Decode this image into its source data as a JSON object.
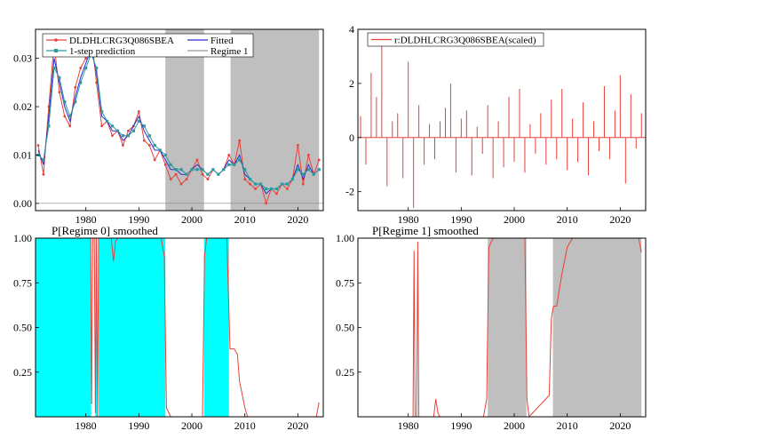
{
  "chart_data": [
    {
      "type": "line",
      "title": "",
      "xlabel": "",
      "ylabel": "",
      "xlim": [
        1970.5,
        2024.8
      ],
      "ylim": [
        -0.0015,
        0.036
      ],
      "x_ticks": [
        1980,
        1990,
        2000,
        2010,
        2020
      ],
      "y_ticks": [
        0.0,
        0.01,
        0.02,
        0.03
      ],
      "y_tick_labels": [
        "0.00",
        "0.01",
        "0.02",
        "0.03"
      ],
      "grid": false,
      "legend_position": "top",
      "shaded_regions": [
        [
          1995.0,
          2002.3
        ],
        [
          2007.3,
          2024.0
        ]
      ],
      "legend": [
        "DLDHLCRG3Q086SBEA",
        "Fitted",
        "1-step prediction",
        "Regime 1"
      ],
      "series": [
        {
          "name": "DLDHLCRG3Q086SBEA",
          "color": "#e8413b",
          "style": "line",
          "x": [
            1971,
            1972,
            1973,
            1974,
            1975,
            1976,
            1977,
            1978,
            1979,
            1980,
            1981,
            1982,
            1983,
            1984,
            1985,
            1986,
            1987,
            1988,
            1989,
            1990,
            1991,
            1992,
            1993,
            1994,
            1995,
            1996,
            1997,
            1998,
            1999,
            2000,
            2001,
            2002,
            2003,
            2004,
            2005,
            2006,
            2007,
            2008,
            2009,
            2010,
            2011,
            2012,
            2013,
            2014,
            2015,
            2016,
            2017,
            2018,
            2019,
            2020,
            2021,
            2022,
            2023,
            2024
          ],
          "y": [
            0.012,
            0.006,
            0.02,
            0.033,
            0.023,
            0.018,
            0.016,
            0.024,
            0.028,
            0.03,
            0.035,
            0.025,
            0.016,
            0.017,
            0.014,
            0.015,
            0.012,
            0.015,
            0.016,
            0.019,
            0.013,
            0.012,
            0.009,
            0.011,
            0.008,
            0.005,
            0.006,
            0.004,
            0.005,
            0.007,
            0.009,
            0.006,
            0.005,
            0.007,
            0.006,
            0.007,
            0.01,
            0.008,
            0.013,
            0.005,
            0.004,
            0.003,
            0.004,
            0.0,
            0.003,
            0.002,
            0.004,
            0.003,
            0.005,
            0.012,
            0.004,
            0.01,
            0.006,
            0.009
          ]
        },
        {
          "name": "Fitted",
          "color": "#2b2bcf",
          "style": "line",
          "x": [
            1971,
            1972,
            1973,
            1974,
            1975,
            1976,
            1977,
            1978,
            1979,
            1980,
            1981,
            1982,
            1983,
            1984,
            1985,
            1986,
            1987,
            1988,
            1989,
            1990,
            1991,
            1992,
            1993,
            1994,
            1995,
            1996,
            1997,
            1998,
            1999,
            2000,
            2001,
            2002,
            2003,
            2004,
            2005,
            2006,
            2007,
            2008,
            2009,
            2010,
            2011,
            2012,
            2013,
            2014,
            2015,
            2016,
            2017,
            2018,
            2019,
            2020,
            2021,
            2022,
            2023,
            2024
          ],
          "y": [
            0.011,
            0.008,
            0.018,
            0.03,
            0.025,
            0.02,
            0.017,
            0.022,
            0.026,
            0.029,
            0.032,
            0.027,
            0.018,
            0.017,
            0.015,
            0.015,
            0.013,
            0.014,
            0.016,
            0.018,
            0.015,
            0.013,
            0.011,
            0.011,
            0.009,
            0.007,
            0.007,
            0.006,
            0.006,
            0.007,
            0.008,
            0.007,
            0.006,
            0.007,
            0.006,
            0.007,
            0.009,
            0.008,
            0.01,
            0.006,
            0.005,
            0.004,
            0.004,
            0.002,
            0.003,
            0.003,
            0.004,
            0.004,
            0.005,
            0.008,
            0.005,
            0.008,
            0.006,
            0.007
          ]
        },
        {
          "name": "1-step prediction",
          "color": "#2a9a9a",
          "style": "line-markers",
          "x": [
            1971,
            1972,
            1973,
            1974,
            1975,
            1976,
            1977,
            1978,
            1979,
            1980,
            1981,
            1982,
            1983,
            1984,
            1985,
            1986,
            1987,
            1988,
            1989,
            1990,
            1991,
            1992,
            1993,
            1994,
            1995,
            1996,
            1997,
            1998,
            1999,
            2000,
            2001,
            2002,
            2003,
            2004,
            2005,
            2006,
            2007,
            2008,
            2009,
            2010,
            2011,
            2012,
            2013,
            2014,
            2015,
            2016,
            2017,
            2018,
            2019,
            2020,
            2021,
            2022,
            2023,
            2024
          ],
          "y": [
            0.01,
            0.009,
            0.016,
            0.028,
            0.026,
            0.021,
            0.018,
            0.021,
            0.025,
            0.028,
            0.031,
            0.028,
            0.019,
            0.017,
            0.016,
            0.015,
            0.014,
            0.014,
            0.015,
            0.017,
            0.016,
            0.014,
            0.012,
            0.011,
            0.01,
            0.008,
            0.007,
            0.007,
            0.006,
            0.007,
            0.007,
            0.007,
            0.006,
            0.007,
            0.006,
            0.007,
            0.008,
            0.008,
            0.009,
            0.007,
            0.005,
            0.004,
            0.004,
            0.003,
            0.003,
            0.003,
            0.004,
            0.004,
            0.005,
            0.007,
            0.006,
            0.007,
            0.006,
            0.007
          ]
        },
        {
          "name": "Regime 1",
          "color": "#bfbfbf",
          "style": "shading"
        }
      ]
    },
    {
      "type": "bar",
      "title": "",
      "xlabel": "",
      "ylabel": "",
      "xlim": [
        1970.5,
        2024.8
      ],
      "ylim": [
        -2.7,
        4.0
      ],
      "x_ticks": [
        1980,
        1990,
        2000,
        2010,
        2020
      ],
      "y_ticks": [
        -2,
        0,
        2,
        4
      ],
      "y_tick_labels": [
        "-2",
        "0",
        "2",
        "4"
      ],
      "grid": false,
      "legend_position": "top-left",
      "legend": [
        "r:DLDHLCRG3Q086SBEA(scaled)"
      ],
      "series": [
        {
          "name": "r:DLDHLCRG3Q086SBEA(scaled)",
          "color": "#e8413b",
          "x": [
            1971,
            1972,
            1973,
            1974,
            1975,
            1976,
            1977,
            1978,
            1979,
            1980,
            1981,
            1982,
            1983,
            1984,
            1985,
            1986,
            1987,
            1988,
            1989,
            1990,
            1991,
            1992,
            1993,
            1994,
            1995,
            1996,
            1997,
            1998,
            1999,
            2000,
            2001,
            2002,
            2003,
            2004,
            2005,
            2006,
            2007,
            2008,
            2009,
            2010,
            2011,
            2012,
            2013,
            2014,
            2015,
            2016,
            2017,
            2018,
            2019,
            2020,
            2021,
            2022,
            2023,
            2024
          ],
          "y": [
            0.8,
            -1.0,
            2.4,
            1.5,
            3.8,
            -1.8,
            0.6,
            0.9,
            -1.5,
            2.8,
            -2.6,
            1.2,
            -1.0,
            0.5,
            -0.8,
            0.6,
            1.1,
            2.0,
            -1.3,
            0.7,
            1.0,
            -1.4,
            0.4,
            -0.6,
            1.2,
            -1.5,
            0.6,
            -1.1,
            1.5,
            -0.9,
            1.8,
            -1.3,
            0.5,
            -0.6,
            0.9,
            -1.0,
            1.4,
            -0.8,
            1.8,
            -1.2,
            0.7,
            -0.9,
            1.3,
            -1.4,
            0.6,
            -0.5,
            1.9,
            -0.8,
            1.0,
            2.3,
            -1.7,
            1.6,
            -0.4,
            0.9
          ]
        }
      ]
    },
    {
      "type": "area",
      "title": "P[Regime 0] smoothed",
      "xlabel": "",
      "ylabel": "",
      "xlim": [
        1970.5,
        2024.8
      ],
      "ylim": [
        0,
        1.0
      ],
      "x_ticks": [
        1980,
        1990,
        2000,
        2010,
        2020
      ],
      "y_ticks": [
        0.25,
        0.5,
        0.75,
        1.0
      ],
      "y_tick_labels": [
        "0.25",
        "0.50",
        "0.75",
        "1.00"
      ],
      "grid": false,
      "shaded_regions": [
        [
          1970.5,
          1981.0
        ],
        [
          1981.8,
          1982.1
        ],
        [
          1982.4,
          1995.0
        ],
        [
          2002.3,
          2007.0
        ]
      ],
      "shade_color": "#00ffff",
      "series": [
        {
          "name": "P[Regime 0] smoothed",
          "color": "#e8413b",
          "x": [
            1970.5,
            1980.9,
            1981.1,
            1981.3,
            1981.6,
            1981.8,
            1982.0,
            1982.2,
            1982.4,
            1984.8,
            1985.2,
            1985.6,
            1986.0,
            1994.2,
            1994.8,
            1995.2,
            1996.0,
            2002.0,
            2002.4,
            2002.8,
            2006.6,
            2007.2,
            2008.0,
            2008.6,
            2009.0,
            2010.0,
            2010.5,
            2015.0,
            2020.0,
            2023.5,
            2024.0
          ],
          "y": [
            1.0,
            1.0,
            0.07,
            1.0,
            1.0,
            0.02,
            1.0,
            0.0,
            1.0,
            1.0,
            0.87,
            0.98,
            1.0,
            1.0,
            0.9,
            0.05,
            0.0,
            0.0,
            0.9,
            1.0,
            1.0,
            0.38,
            0.38,
            0.35,
            0.2,
            0.05,
            0.0,
            0.0,
            0.0,
            0.0,
            0.08
          ]
        }
      ]
    },
    {
      "type": "area",
      "title": "P[Regime 1] smoothed",
      "xlabel": "",
      "ylabel": "",
      "xlim": [
        1970.5,
        2024.8
      ],
      "ylim": [
        0,
        1.0
      ],
      "x_ticks": [
        1980,
        1990,
        2000,
        2010,
        2020
      ],
      "y_ticks": [
        0.25,
        0.5,
        0.75,
        1.0
      ],
      "y_tick_labels": [
        "0.25",
        "0.50",
        "0.75",
        "1.00"
      ],
      "grid": false,
      "shaded_regions": [
        [
          1995.0,
          2002.3
        ],
        [
          2007.3,
          2024.0
        ]
      ],
      "shade_color": "#bfbfbf",
      "series": [
        {
          "name": "P[Regime 1] smoothed",
          "color": "#e8413b",
          "x": [
            1970.5,
            1980.9,
            1981.1,
            1981.3,
            1981.6,
            1981.8,
            1982.0,
            1982.2,
            1982.4,
            1984.8,
            1985.2,
            1985.6,
            1986.0,
            1994.2,
            1994.8,
            1995.2,
            1996.0,
            2002.0,
            2002.4,
            2002.8,
            2006.6,
            2007.0,
            2007.4,
            2008.0,
            2009.0,
            2010.0,
            2011.0,
            2015.0,
            2020.0,
            2023.5,
            2024.0
          ],
          "y": [
            0.0,
            0.0,
            0.93,
            0.0,
            0.0,
            0.98,
            0.0,
            0.0,
            0.0,
            0.0,
            0.1,
            0.02,
            0.0,
            0.0,
            0.1,
            0.95,
            1.0,
            1.0,
            0.1,
            0.0,
            0.12,
            0.55,
            0.62,
            0.62,
            0.8,
            0.95,
            1.0,
            1.0,
            1.0,
            1.0,
            0.92
          ]
        }
      ]
    }
  ]
}
